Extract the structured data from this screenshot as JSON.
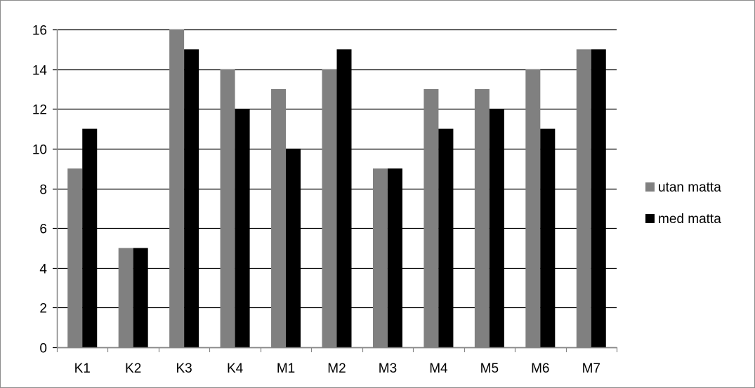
{
  "chart_data": {
    "type": "bar",
    "categories": [
      "K1",
      "K2",
      "K3",
      "K4",
      "M1",
      "M2",
      "M3",
      "M4",
      "M5",
      "M6",
      "M7"
    ],
    "series": [
      {
        "name": "utan matta",
        "color": "#808080",
        "values": [
          9,
          5,
          16,
          14,
          13,
          14,
          9,
          13,
          13,
          14,
          15
        ]
      },
      {
        "name": "med matta",
        "color": "#000000",
        "values": [
          11,
          5,
          15,
          12,
          10,
          15,
          9,
          11,
          12,
          11,
          15
        ]
      }
    ],
    "title": "",
    "xlabel": "",
    "ylabel": "",
    "ylim": [
      0,
      16
    ],
    "yticks": [
      0,
      2,
      4,
      6,
      8,
      10,
      12,
      14,
      16
    ],
    "grid": true,
    "legend_position": "right"
  }
}
